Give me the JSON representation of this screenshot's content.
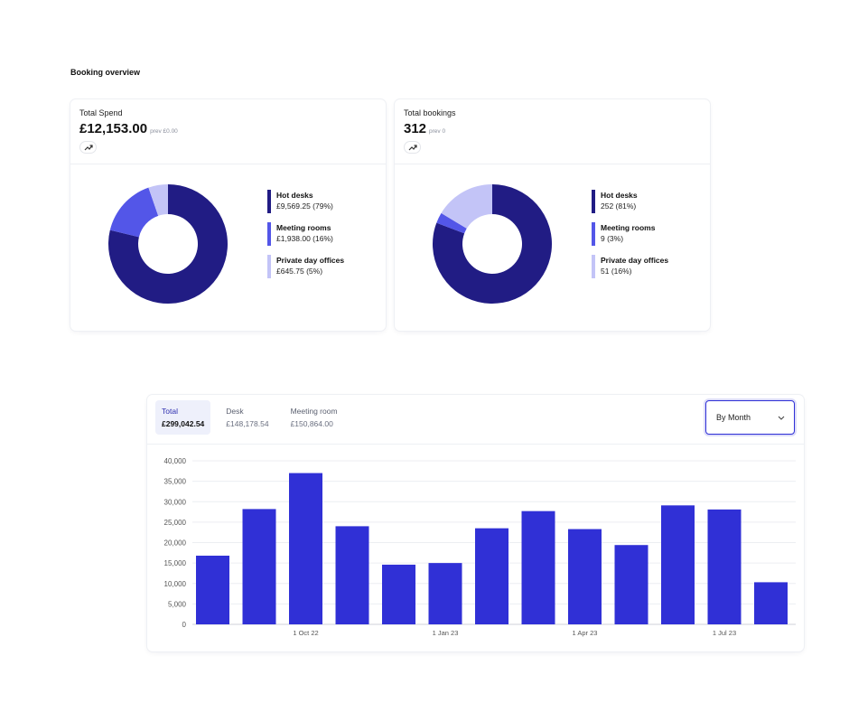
{
  "page": {
    "section_title": "Booking overview"
  },
  "cards": [
    {
      "label": "Total Spend",
      "value": "£12,153.00",
      "prev": "prev £0.00",
      "legend": [
        {
          "name": "Hot desks",
          "value": "£9,569.25 (79%)",
          "color": "#211c84"
        },
        {
          "name": "Meeting rooms",
          "value": "£1,938.00 (16%)",
          "color": "#5356e8"
        },
        {
          "name": "Private day offices",
          "value": "£645.75 (5%)",
          "color": "#c3c4f7"
        }
      ]
    },
    {
      "label": "Total bookings",
      "value": "312",
      "prev": "prev 0",
      "legend": [
        {
          "name": "Hot desks",
          "value": "252 (81%)",
          "color": "#211c84"
        },
        {
          "name": "Meeting rooms",
          "value": "9 (3%)",
          "color": "#5356e8"
        },
        {
          "name": "Private day offices",
          "value": "51 (16%)",
          "color": "#c3c4f7"
        }
      ]
    }
  ],
  "tabs": [
    {
      "label": "Total",
      "value": "£299,042.54",
      "active": true
    },
    {
      "label": "Desk",
      "value": "£148,178.54",
      "active": false
    },
    {
      "label": "Meeting room",
      "value": "£150,864.00",
      "active": false
    }
  ],
  "select": {
    "label": "By Month",
    "icon": "chevron-down-icon"
  },
  "chart_data": [
    {
      "type": "pie",
      "variant": "donut",
      "categories": [
        "Hot desks",
        "Meeting rooms",
        "Private day offices"
      ],
      "values": [
        9569.25,
        1938.0,
        645.75
      ],
      "colors": [
        "#211c84",
        "#5356e8",
        "#c3c4f7"
      ]
    },
    {
      "type": "pie",
      "variant": "donut",
      "categories": [
        "Hot desks",
        "Meeting rooms",
        "Private day offices"
      ],
      "values": [
        252,
        9,
        51
      ],
      "colors": [
        "#211c84",
        "#5356e8",
        "#c3c4f7"
      ]
    },
    {
      "type": "bar",
      "categories": [
        "Aug 22",
        "Sep 22",
        "Oct 22",
        "Nov 22",
        "Dec 22",
        "Jan 23",
        "Feb 23",
        "Mar 23",
        "Apr 23",
        "May 23",
        "Jun 23",
        "Jul 23",
        "Aug 23"
      ],
      "values": [
        16800,
        28200,
        37000,
        24000,
        14600,
        15000,
        23500,
        27700,
        23300,
        19400,
        29100,
        28100,
        10300
      ],
      "x_tick_labels": [
        {
          "index": 2,
          "label": "1 Oct 22"
        },
        {
          "index": 5,
          "label": "1 Jan 23"
        },
        {
          "index": 8,
          "label": "1 Apr 23"
        },
        {
          "index": 11,
          "label": "1 Jul 23"
        }
      ],
      "yticks": [
        "0",
        "5,000",
        "10,000",
        "15,000",
        "20,000",
        "25,000",
        "30,000",
        "35,000",
        "40,000"
      ],
      "ylim": [
        0,
        40000
      ],
      "grid": true,
      "color": "#3030d6"
    }
  ]
}
